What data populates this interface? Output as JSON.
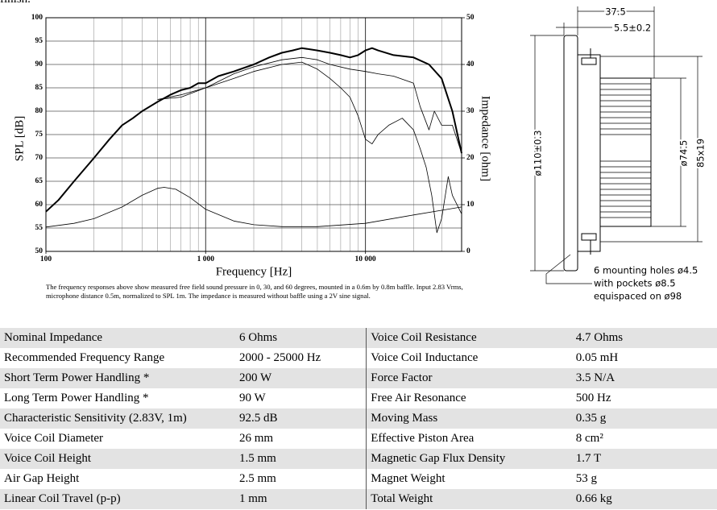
{
  "intro_tail": "finish.",
  "chart": {
    "type": "line",
    "xlabel": "Frequency [Hz]",
    "ylabel": "SPL [dB]",
    "y2label": "Impedance [ohm]",
    "xlog": true,
    "xlim": [
      100,
      40000
    ],
    "xticks": [
      100,
      {
        "value": 1000,
        "label": "1 000"
      },
      {
        "value": 10000,
        "label": "10 000"
      }
    ],
    "xgrid": [
      200,
      300,
      400,
      500,
      600,
      700,
      800,
      900,
      2000,
      3000,
      4000,
      5000,
      6000,
      7000,
      8000,
      9000,
      20000,
      30000
    ],
    "ylim": [
      50,
      100
    ],
    "yticks": [
      50,
      55,
      60,
      65,
      70,
      75,
      80,
      85,
      90,
      95,
      100
    ],
    "y2lim": [
      0,
      50
    ],
    "y2ticks": [
      0,
      10,
      20,
      30,
      40,
      50
    ],
    "series": [
      {
        "color": "#000000",
        "width": 2,
        "x": [
          100,
          120,
          150,
          200,
          250,
          300,
          350,
          400,
          500,
          600,
          700,
          800,
          900,
          1000,
          1200,
          1500,
          2000,
          2500,
          3000,
          3500,
          4000,
          5000,
          6000,
          7000,
          8000,
          9000,
          10000,
          11000,
          12000,
          15000,
          20000,
          25000,
          30000,
          35000,
          40000
        ],
        "values": [
          58.5,
          61,
          65,
          70,
          74,
          77,
          78.5,
          80,
          82,
          83.5,
          84.5,
          85,
          86,
          86,
          87.5,
          88.5,
          90,
          91.5,
          92.5,
          93,
          93.5,
          93,
          92.5,
          92,
          91.5,
          92,
          93,
          93.5,
          93,
          92,
          91.5,
          90,
          87,
          80,
          71
        ]
      },
      {
        "color": "#000000",
        "width": 0.8,
        "x": [
          500,
          700,
          1000,
          1500,
          2000,
          3000,
          4000,
          5000,
          6000,
          8000,
          10000,
          12000,
          15000,
          20000,
          22000,
          25000,
          27000,
          30000,
          35000,
          40000
        ],
        "values": [
          82.5,
          83,
          85,
          88,
          89.5,
          91,
          91.5,
          91,
          90,
          89,
          88.5,
          88,
          87.5,
          86,
          81,
          76,
          80,
          77,
          77,
          71
        ]
      },
      {
        "color": "#000000",
        "width": 0.8,
        "x": [
          500,
          700,
          1000,
          1500,
          2000,
          3000,
          4000,
          5000,
          6000,
          7000,
          8000,
          9000,
          10000,
          11000,
          12000,
          14000,
          17000,
          20000,
          22000,
          24000,
          26000,
          28000,
          30000,
          33000,
          35000,
          40000
        ],
        "values": [
          82.5,
          83.5,
          85,
          87,
          88.5,
          90,
          90.5,
          89,
          87,
          85,
          83,
          79,
          74,
          73,
          75,
          77,
          78.5,
          76,
          72,
          68,
          62,
          54,
          57,
          66,
          62,
          58
        ]
      },
      {
        "color": "#000000",
        "width": 0.8,
        "axis": "y2",
        "x": [
          100,
          150,
          200,
          300,
          400,
          500,
          550,
          650,
          800,
          1000,
          1500,
          2000,
          3000,
          5000,
          10000,
          20000,
          30000,
          40000
        ],
        "values": [
          5.2,
          6,
          7,
          9.5,
          12,
          13.5,
          13.7,
          13.3,
          11.5,
          9,
          6.5,
          5.7,
          5.3,
          5.3,
          6,
          7.8,
          8.8,
          9.5
        ]
      }
    ]
  },
  "caption": "The frequency responses above show measured free field sound pressure in 0, 30, and 60 degrees, mounted in a 0.6m by 0.8m baffle. Input 2.83 Vrms, microphone distance 0.5m, normalized to SPL 1m. The impedance is measured without baffle using a 2V sine signal.",
  "drawing": {
    "depth": "37.5",
    "flange": "5.5±0.2",
    "outer_diameter": "ø110±0.3",
    "magnet_diameter": "ø74.5",
    "magnet_size": "85x19",
    "note": [
      "6 mounting holes ø4.5",
      "with pockets ø8.5",
      "equispaced on ø98"
    ]
  },
  "table": {
    "rows": [
      [
        "Nominal Impedance",
        "6 Ohms",
        "Voice Coil Resistance",
        "4.7 Ohms"
      ],
      [
        "Recommended Frequency Range",
        "2000 - 25000 Hz",
        "Voice Coil Inductance",
        "0.05 mH"
      ],
      [
        "Short Term Power Handling *",
        "200 W",
        "Force Factor",
        "3.5 N/A"
      ],
      [
        "Long Term Power Handling *",
        "90 W",
        "Free Air Resonance",
        "500 Hz"
      ],
      [
        "Characteristic Sensitivity (2.83V, 1m)",
        "92.5 dB",
        "Moving Mass",
        "0.35 g"
      ],
      [
        "Voice Coil Diameter",
        "26 mm",
        "Effective Piston Area",
        "8 cm²"
      ],
      [
        "Voice Coil Height",
        "1.5 mm",
        "Magnetic Gap Flux Density",
        "1.7 T"
      ],
      [
        "Air Gap Height",
        "2.5 mm",
        "Magnet Weight",
        "53 g"
      ],
      [
        "Linear Coil Travel (p-p)",
        "1 mm",
        "Total Weight",
        "0.66 kg"
      ]
    ]
  }
}
